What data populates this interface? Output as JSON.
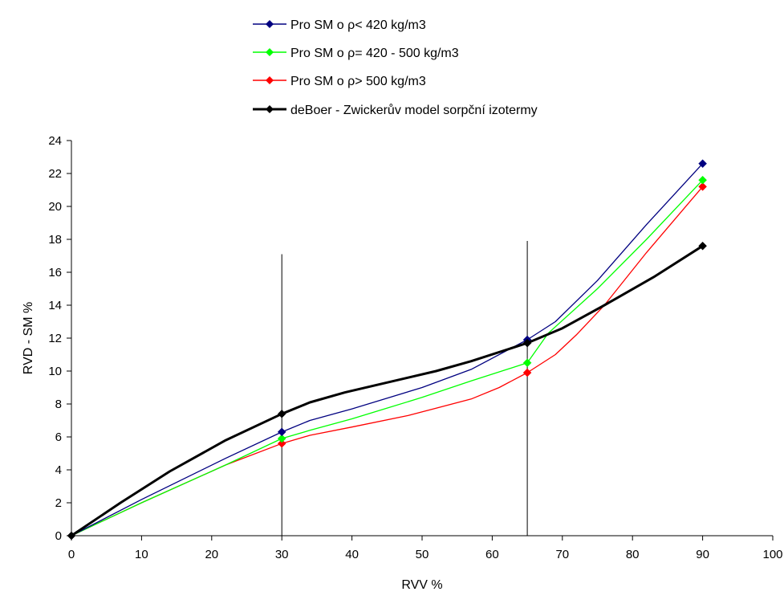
{
  "chart_data": {
    "type": "line",
    "title": "",
    "xlabel": "RVV %",
    "ylabel": "RVD - SM %",
    "xlim": [
      0,
      100
    ],
    "ylim": [
      0,
      24
    ],
    "xticks": [
      0,
      10,
      20,
      30,
      40,
      50,
      60,
      70,
      80,
      90,
      100
    ],
    "yticks": [
      0,
      2,
      4,
      6,
      8,
      10,
      12,
      14,
      16,
      18,
      20,
      22,
      24
    ],
    "grid": false,
    "legend_position": "top",
    "series": [
      {
        "name": "Pro SM o ρ< 420 kg/m3",
        "color": "#000080",
        "markers": [
          [
            0,
            0
          ],
          [
            30,
            6.3
          ],
          [
            65,
            11.9
          ],
          [
            90,
            22.6
          ]
        ],
        "curve": [
          [
            0,
            0
          ],
          [
            10,
            2.2
          ],
          [
            22,
            4.7
          ],
          [
            30,
            6.3
          ],
          [
            34,
            7.0
          ],
          [
            40,
            7.7
          ],
          [
            50,
            9.0
          ],
          [
            57,
            10.1
          ],
          [
            65,
            11.9
          ],
          [
            69,
            13.0
          ],
          [
            75,
            15.5
          ],
          [
            82,
            18.9
          ],
          [
            90,
            22.6
          ]
        ]
      },
      {
        "name": "Pro SM o ρ= 420 - 500 kg/m3",
        "color": "#00ff00",
        "markers": [
          [
            0,
            0
          ],
          [
            30,
            5.9
          ],
          [
            65,
            10.5
          ],
          [
            90,
            21.6
          ]
        ],
        "curve": [
          [
            0,
            0
          ],
          [
            10,
            2.0
          ],
          [
            22,
            4.3
          ],
          [
            30,
            5.9
          ],
          [
            34,
            6.4
          ],
          [
            40,
            7.1
          ],
          [
            50,
            8.4
          ],
          [
            57,
            9.4
          ],
          [
            65,
            10.5
          ],
          [
            68,
            12.3
          ],
          [
            75,
            15.0
          ],
          [
            82,
            18.0
          ],
          [
            90,
            21.6
          ]
        ]
      },
      {
        "name": "Pro SM o ρ> 500 kg/m3",
        "color": "#ff0000",
        "markers": [
          [
            0,
            0
          ],
          [
            30,
            5.6
          ],
          [
            65,
            9.9
          ],
          [
            90,
            21.2
          ]
        ],
        "curve": [
          [
            0,
            0
          ],
          [
            10,
            2.0
          ],
          [
            22,
            4.3
          ],
          [
            30,
            5.6
          ],
          [
            34,
            6.1
          ],
          [
            40,
            6.6
          ],
          [
            48,
            7.3
          ],
          [
            57,
            8.3
          ],
          [
            61,
            9.0
          ],
          [
            65,
            9.9
          ],
          [
            69,
            11.0
          ],
          [
            72,
            12.2
          ],
          [
            76,
            14.0
          ],
          [
            82,
            17.2
          ],
          [
            90,
            21.2
          ]
        ]
      },
      {
        "name": "deBoer - Zwickerův model sorpční izotermy",
        "color": "#000000",
        "markers": [
          [
            0,
            0
          ],
          [
            30,
            7.4
          ],
          [
            65,
            11.7
          ],
          [
            90,
            17.6
          ]
        ],
        "curve": [
          [
            0,
            0
          ],
          [
            7,
            2.0
          ],
          [
            14,
            3.9
          ],
          [
            22,
            5.8
          ],
          [
            30,
            7.4
          ],
          [
            34,
            8.1
          ],
          [
            39,
            8.7
          ],
          [
            48,
            9.6
          ],
          [
            52,
            10.0
          ],
          [
            57,
            10.6
          ],
          [
            65,
            11.7
          ],
          [
            70,
            12.6
          ],
          [
            76,
            14.0
          ],
          [
            83,
            15.7
          ],
          [
            90,
            17.6
          ]
        ]
      }
    ],
    "vertical_lines": [
      {
        "x": 30,
        "y_from": 0,
        "y_to": 17.1
      },
      {
        "x": 65,
        "y_from": 0,
        "y_to": 17.9
      }
    ]
  }
}
